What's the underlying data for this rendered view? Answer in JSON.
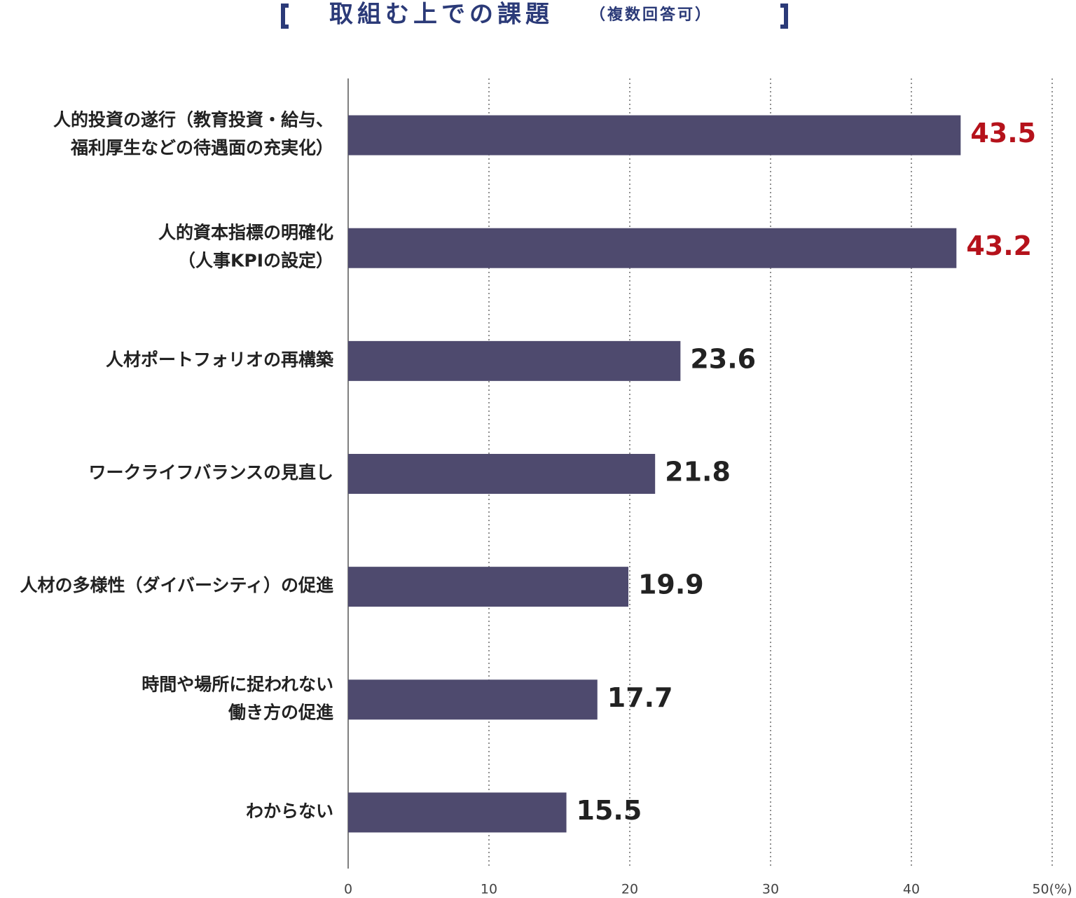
{
  "chart_data": {
    "type": "bar",
    "orientation": "horizontal",
    "title": "取組む上での課題",
    "title_note": "（複数回答可）",
    "categories": [
      [
        "人的投資の遂行（教育投資・給与、",
        "福利厚生などの待遇面の充実化）"
      ],
      [
        "人的資本指標の明確化",
        "（人事KPIの設定）"
      ],
      [
        "人材ポートフォリオの再構築"
      ],
      [
        "ワークライフバランスの見直し"
      ],
      [
        "人材の多様性（ダイバーシティ）の促進"
      ],
      [
        "時間や場所に捉われない",
        "働き方の促進"
      ],
      [
        "わからない"
      ]
    ],
    "values": [
      43.5,
      43.2,
      23.6,
      21.8,
      19.9,
      17.7,
      15.5
    ],
    "color": "#4e4a6e",
    "value_label_colors": [
      "#b5121b",
      "#b5121b",
      "#222222",
      "#222222",
      "#222222",
      "#222222",
      "#222222"
    ],
    "xlim": [
      0,
      50
    ],
    "xticks": [
      0,
      10,
      20,
      30,
      40,
      {
        "value": 50,
        "label": "50(%)"
      }
    ],
    "grid": true
  }
}
